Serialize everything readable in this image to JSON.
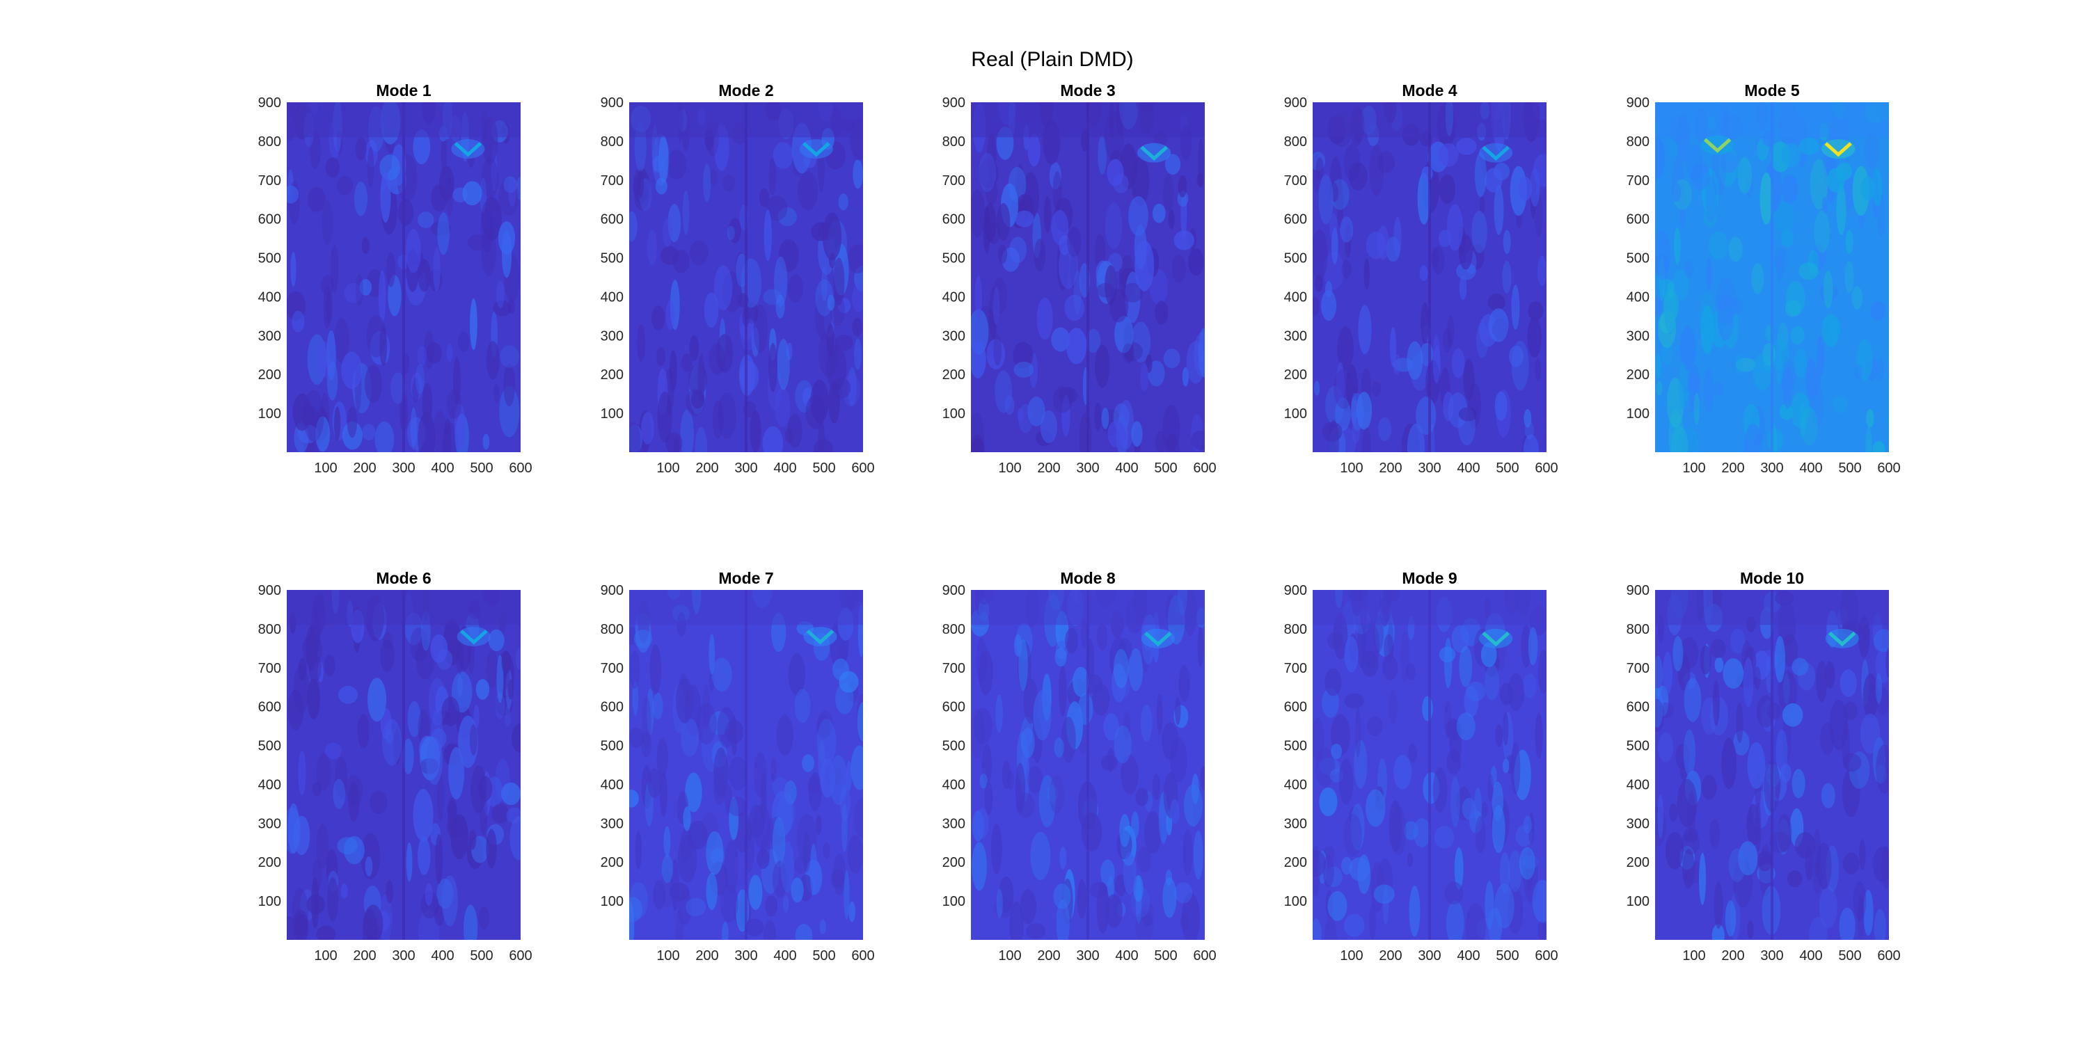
{
  "figure": {
    "title": "Real (Plain DMD)"
  },
  "colors": {
    "colormap": "parula",
    "parula_dark": "#3e26a8",
    "parula_blue": "#2e82f8",
    "parula_cyan": "#2dc6c1",
    "parula_yellow": "#f9fb14"
  },
  "chart_data": [
    {
      "type": "heatmap",
      "title": "Mode 1",
      "xlim": [
        0,
        600
      ],
      "ylim": [
        0,
        900
      ],
      "x_ticks": [
        100,
        200,
        300,
        400,
        500,
        600
      ],
      "y_ticks": [
        100,
        200,
        300,
        400,
        500,
        600,
        700,
        800,
        900
      ],
      "background_level": 0.08,
      "hotspots": [
        {
          "x": 465,
          "y": 780,
          "level": 0.45
        }
      ]
    },
    {
      "type": "heatmap",
      "title": "Mode 2",
      "xlim": [
        0,
        600
      ],
      "ylim": [
        0,
        900
      ],
      "x_ticks": [
        100,
        200,
        300,
        400,
        500,
        600
      ],
      "y_ticks": [
        100,
        200,
        300,
        400,
        500,
        600,
        700,
        800,
        900
      ],
      "background_level": 0.08,
      "hotspots": [
        {
          "x": 480,
          "y": 780,
          "level": 0.45
        }
      ]
    },
    {
      "type": "heatmap",
      "title": "Mode 3",
      "xlim": [
        0,
        600
      ],
      "ylim": [
        0,
        900
      ],
      "x_ticks": [
        100,
        200,
        300,
        400,
        500,
        600
      ],
      "y_ticks": [
        100,
        200,
        300,
        400,
        500,
        600,
        700,
        800,
        900
      ],
      "background_level": 0.07,
      "hotspots": [
        {
          "x": 470,
          "y": 770,
          "level": 0.5
        }
      ]
    },
    {
      "type": "heatmap",
      "title": "Mode 4",
      "xlim": [
        0,
        600
      ],
      "ylim": [
        0,
        900
      ],
      "x_ticks": [
        100,
        200,
        300,
        400,
        500,
        600
      ],
      "y_ticks": [
        100,
        200,
        300,
        400,
        500,
        600,
        700,
        800,
        900
      ],
      "background_level": 0.08,
      "hotspots": [
        {
          "x": 470,
          "y": 770,
          "level": 0.45
        }
      ]
    },
    {
      "type": "heatmap",
      "title": "Mode 5",
      "xlim": [
        0,
        600
      ],
      "ylim": [
        0,
        900
      ],
      "x_ticks": [
        100,
        200,
        300,
        400,
        500,
        600
      ],
      "y_ticks": [
        100,
        200,
        300,
        400,
        500,
        600,
        700,
        800,
        900
      ],
      "background_level": 0.35,
      "hotspots": [
        {
          "x": 160,
          "y": 790,
          "level": 0.75
        },
        {
          "x": 470,
          "y": 780,
          "level": 0.95
        }
      ]
    },
    {
      "type": "heatmap",
      "title": "Mode 6",
      "xlim": [
        0,
        600
      ],
      "ylim": [
        0,
        900
      ],
      "x_ticks": [
        100,
        200,
        300,
        400,
        500,
        600
      ],
      "y_ticks": [
        100,
        200,
        300,
        400,
        500,
        600,
        700,
        800,
        900
      ],
      "background_level": 0.08,
      "hotspots": [
        {
          "x": 480,
          "y": 780,
          "level": 0.45
        }
      ]
    },
    {
      "type": "heatmap",
      "title": "Mode 7",
      "xlim": [
        0,
        600
      ],
      "ylim": [
        0,
        900
      ],
      "x_ticks": [
        100,
        200,
        300,
        400,
        500,
        600
      ],
      "y_ticks": [
        100,
        200,
        300,
        400,
        500,
        600,
        700,
        800,
        900
      ],
      "background_level": 0.12,
      "hotspots": [
        {
          "x": 490,
          "y": 780,
          "level": 0.5
        }
      ]
    },
    {
      "type": "heatmap",
      "title": "Mode 8",
      "xlim": [
        0,
        600
      ],
      "ylim": [
        0,
        900
      ],
      "x_ticks": [
        100,
        200,
        300,
        400,
        500,
        600
      ],
      "y_ticks": [
        100,
        200,
        300,
        400,
        500,
        600,
        700,
        800,
        900
      ],
      "background_level": 0.12,
      "hotspots": [
        {
          "x": 480,
          "y": 775,
          "level": 0.5
        }
      ]
    },
    {
      "type": "heatmap",
      "title": "Mode 9",
      "xlim": [
        0,
        600
      ],
      "ylim": [
        0,
        900
      ],
      "x_ticks": [
        100,
        200,
        300,
        400,
        500,
        600
      ],
      "y_ticks": [
        100,
        200,
        300,
        400,
        500,
        600,
        700,
        800,
        900
      ],
      "background_level": 0.12,
      "hotspots": [
        {
          "x": 470,
          "y": 775,
          "level": 0.55
        }
      ]
    },
    {
      "type": "heatmap",
      "title": "Mode 10",
      "xlim": [
        0,
        600
      ],
      "ylim": [
        0,
        900
      ],
      "x_ticks": [
        100,
        200,
        300,
        400,
        500,
        600
      ],
      "y_ticks": [
        100,
        200,
        300,
        400,
        500,
        600,
        700,
        800,
        900
      ],
      "background_level": 0.1,
      "hotspots": [
        {
          "x": 480,
          "y": 775,
          "level": 0.55
        }
      ]
    }
  ]
}
